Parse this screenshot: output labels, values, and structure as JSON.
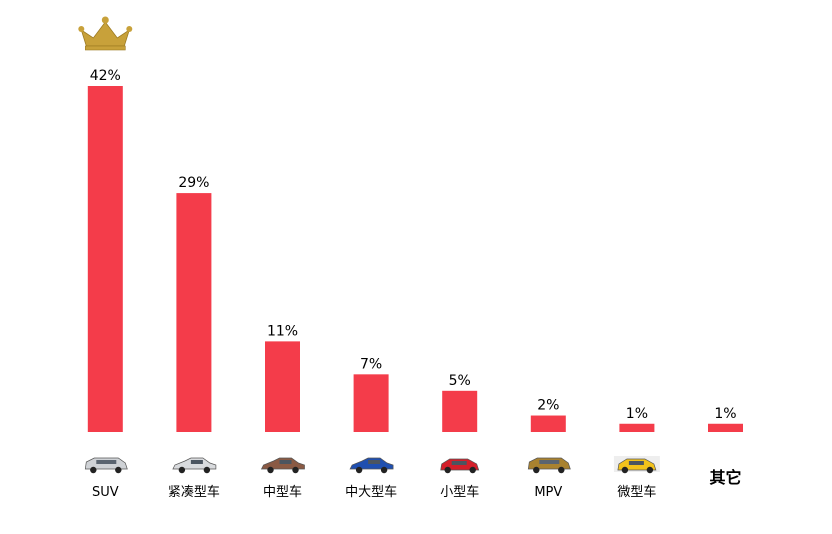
{
  "chart_data": {
    "type": "bar",
    "categories": [
      "SUV",
      "紧凑型车",
      "中型车",
      "中大型车",
      "小型车",
      "MPV",
      "微型车",
      "其它"
    ],
    "values": [
      42,
      29,
      11,
      7,
      5,
      2,
      1,
      1
    ],
    "value_labels": [
      "42%",
      "29%",
      "11%",
      "7%",
      "5%",
      "2%",
      "1%",
      "1%"
    ],
    "ylim": [
      0,
      42
    ],
    "grid": false,
    "legend": "none",
    "bar_color": "#f43c4a",
    "crown_color": "#c8a13a",
    "car_icons": [
      "suv-car-icon",
      "compact-car-icon",
      "midsize-car-icon",
      "large-sedan-icon",
      "small-car-icon",
      "mpv-icon",
      "micro-car-icon",
      ""
    ],
    "car_colors": [
      "#cfd2d6",
      "#d9dbde",
      "#8a5a44",
      "#1f4fb0",
      "#d41f2a",
      "#a9822f",
      "#f2c21b",
      ""
    ]
  }
}
